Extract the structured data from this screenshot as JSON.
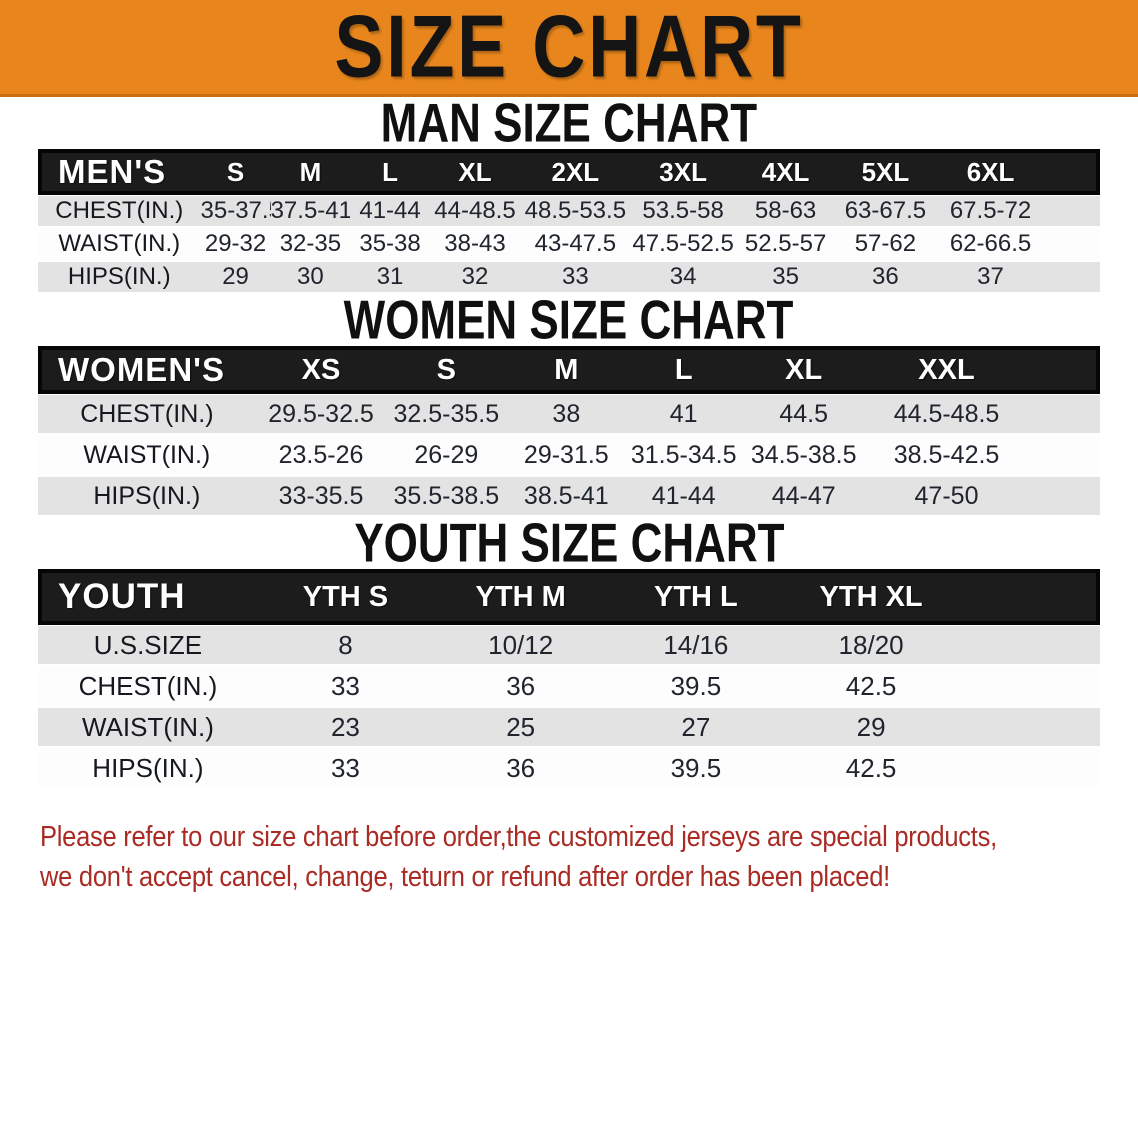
{
  "banner": {
    "title": "SIZE CHART"
  },
  "sections": [
    {
      "heading": "MAN SIZE CHART",
      "table": {
        "header": [
          "MEN'S",
          "S",
          "M",
          "L",
          "XL",
          "2XL",
          "3XL",
          "4XL",
          "5XL",
          "6XL"
        ],
        "rows": [
          [
            "CHEST(IN.)",
            "35-37.5",
            "37.5-41",
            "41-44",
            "44-48.5",
            "48.5-53.5",
            "53.5-58",
            "58-63",
            "63-67.5",
            "67.5-72"
          ],
          [
            "WAIST(IN.)",
            "29-32",
            "32-35",
            "35-38",
            "38-43",
            "43-47.5",
            "47.5-52.5",
            "52.5-57",
            "57-62",
            "62-66.5"
          ],
          [
            "HIPS(IN.)",
            "29",
            "30",
            "31",
            "32",
            "33",
            "34",
            "35",
            "36",
            "37"
          ]
        ]
      }
    },
    {
      "heading": "WOMEN SIZE CHART",
      "table": {
        "header": [
          "WOMEN'S",
          "XS",
          "S",
          "M",
          "L",
          "XL",
          "XXL"
        ],
        "rows": [
          [
            "CHEST(IN.)",
            "29.5-32.5",
            "32.5-35.5",
            "38",
            "41",
            "44.5",
            "44.5-48.5"
          ],
          [
            "WAIST(IN.)",
            "23.5-26",
            "26-29",
            "29-31.5",
            "31.5-34.5",
            "34.5-38.5",
            "38.5-42.5"
          ],
          [
            "HIPS(IN.)",
            "33-35.5",
            "35.5-38.5",
            "38.5-41",
            "41-44",
            "44-47",
            "47-50"
          ]
        ]
      }
    },
    {
      "heading": "YOUTH SIZE CHART",
      "table": {
        "header": [
          "YOUTH",
          "YTH S",
          "YTH M",
          "YTH L",
          "YTH XL"
        ],
        "rows": [
          [
            "U.S.SIZE",
            "8",
            "10/12",
            "14/16",
            "18/20"
          ],
          [
            "CHEST(IN.)",
            "33",
            "36",
            "39.5",
            "42.5"
          ],
          [
            "WAIST(IN.)",
            "23",
            "25",
            "27",
            "29"
          ],
          [
            "HIPS(IN.)",
            "33",
            "36",
            "39.5",
            "42.5"
          ]
        ]
      }
    }
  ],
  "footer": {
    "line1": "Please refer to our size chart before order,the customized jerseys are special products,",
    "line2": "we don't accept cancel, change, teturn or refund after order has been placed!"
  },
  "colors": {
    "banner-bg": "#E8861D",
    "band-bg": "#1c1c1c",
    "stripe": "#e3e3e3",
    "footer-red": "#A92B24"
  }
}
